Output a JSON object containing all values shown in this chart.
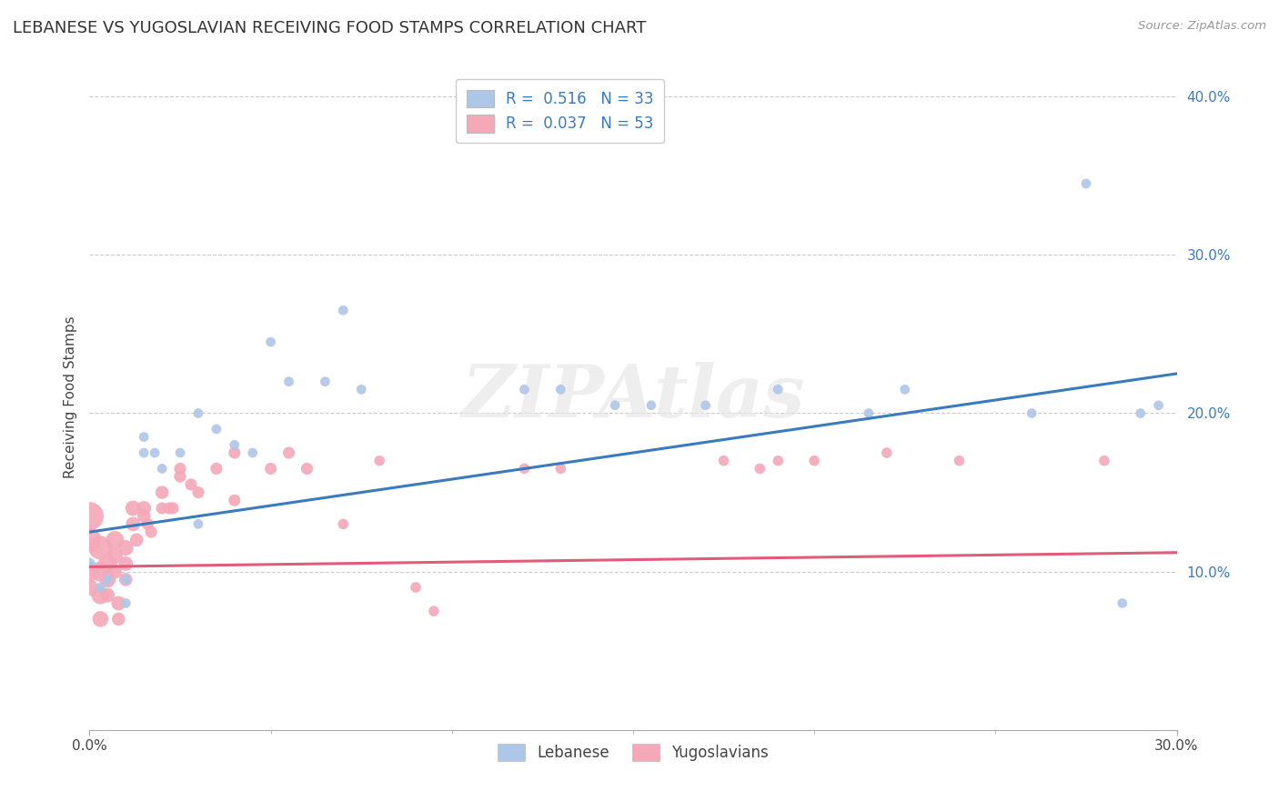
{
  "title": "LEBANESE VS YUGOSLAVIAN RECEIVING FOOD STAMPS CORRELATION CHART",
  "source_text": "Source: ZipAtlas.com",
  "ylabel": "Receiving Food Stamps",
  "xlim": [
    0.0,
    0.3
  ],
  "ylim": [
    0.0,
    0.42
  ],
  "xtick_labels_ends": [
    "0.0%",
    "30.0%"
  ],
  "xtick_vals_ends": [
    0.0,
    0.3
  ],
  "ytick_labels": [
    "10.0%",
    "20.0%",
    "30.0%",
    "40.0%"
  ],
  "ytick_vals": [
    0.1,
    0.2,
    0.3,
    0.4
  ],
  "background_color": "#ffffff",
  "plot_bg_color": "#ffffff",
  "grid_color": "#cccccc",
  "lebanese_color": "#aec6e8",
  "yugoslavian_color": "#f4a8b8",
  "lebanese_line_color": "#3a7abf",
  "yugoslavian_line_color": "#e05c78",
  "watermark_color": "#e8e8e8",
  "watermark_text": "ZIPAtlas",
  "lebanese_label": "Lebanese",
  "yugoslavian_label": "Yugoslavians",
  "lebanese_scatter": [
    [
      0.0,
      0.105
    ],
    [
      0.003,
      0.09
    ],
    [
      0.005,
      0.095
    ],
    [
      0.01,
      0.095
    ],
    [
      0.01,
      0.08
    ],
    [
      0.015,
      0.185
    ],
    [
      0.015,
      0.175
    ],
    [
      0.018,
      0.175
    ],
    [
      0.02,
      0.165
    ],
    [
      0.025,
      0.175
    ],
    [
      0.03,
      0.13
    ],
    [
      0.03,
      0.2
    ],
    [
      0.035,
      0.19
    ],
    [
      0.04,
      0.18
    ],
    [
      0.045,
      0.175
    ],
    [
      0.05,
      0.245
    ],
    [
      0.055,
      0.22
    ],
    [
      0.065,
      0.22
    ],
    [
      0.07,
      0.265
    ],
    [
      0.075,
      0.215
    ],
    [
      0.12,
      0.215
    ],
    [
      0.13,
      0.215
    ],
    [
      0.145,
      0.205
    ],
    [
      0.155,
      0.205
    ],
    [
      0.17,
      0.205
    ],
    [
      0.19,
      0.215
    ],
    [
      0.215,
      0.2
    ],
    [
      0.225,
      0.215
    ],
    [
      0.26,
      0.2
    ],
    [
      0.275,
      0.345
    ],
    [
      0.285,
      0.08
    ],
    [
      0.29,
      0.2
    ],
    [
      0.295,
      0.205
    ]
  ],
  "lebanese_sizes": [
    80,
    60,
    60,
    60,
    60,
    60,
    60,
    60,
    60,
    60,
    60,
    60,
    60,
    60,
    60,
    60,
    60,
    60,
    60,
    60,
    60,
    60,
    60,
    60,
    60,
    60,
    60,
    60,
    60,
    60,
    60,
    60,
    60
  ],
  "yugoslavian_scatter": [
    [
      0.0,
      0.135
    ],
    [
      0.0,
      0.12
    ],
    [
      0.0,
      0.1
    ],
    [
      0.0,
      0.09
    ],
    [
      0.003,
      0.115
    ],
    [
      0.003,
      0.1
    ],
    [
      0.003,
      0.085
    ],
    [
      0.003,
      0.07
    ],
    [
      0.005,
      0.105
    ],
    [
      0.005,
      0.095
    ],
    [
      0.005,
      0.085
    ],
    [
      0.007,
      0.12
    ],
    [
      0.007,
      0.11
    ],
    [
      0.007,
      0.1
    ],
    [
      0.008,
      0.08
    ],
    [
      0.008,
      0.07
    ],
    [
      0.01,
      0.115
    ],
    [
      0.01,
      0.105
    ],
    [
      0.01,
      0.095
    ],
    [
      0.012,
      0.14
    ],
    [
      0.012,
      0.13
    ],
    [
      0.013,
      0.12
    ],
    [
      0.015,
      0.14
    ],
    [
      0.015,
      0.135
    ],
    [
      0.016,
      0.13
    ],
    [
      0.017,
      0.125
    ],
    [
      0.02,
      0.15
    ],
    [
      0.02,
      0.14
    ],
    [
      0.022,
      0.14
    ],
    [
      0.023,
      0.14
    ],
    [
      0.025,
      0.165
    ],
    [
      0.025,
      0.16
    ],
    [
      0.028,
      0.155
    ],
    [
      0.03,
      0.15
    ],
    [
      0.035,
      0.165
    ],
    [
      0.04,
      0.175
    ],
    [
      0.04,
      0.145
    ],
    [
      0.05,
      0.165
    ],
    [
      0.055,
      0.175
    ],
    [
      0.06,
      0.165
    ],
    [
      0.07,
      0.13
    ],
    [
      0.08,
      0.17
    ],
    [
      0.09,
      0.09
    ],
    [
      0.095,
      0.075
    ],
    [
      0.12,
      0.165
    ],
    [
      0.13,
      0.165
    ],
    [
      0.175,
      0.17
    ],
    [
      0.185,
      0.165
    ],
    [
      0.19,
      0.17
    ],
    [
      0.2,
      0.17
    ],
    [
      0.22,
      0.175
    ],
    [
      0.24,
      0.17
    ],
    [
      0.28,
      0.17
    ]
  ],
  "yugoslavian_sizes": [
    500,
    350,
    250,
    180,
    350,
    250,
    200,
    160,
    220,
    160,
    130,
    200,
    160,
    130,
    130,
    110,
    150,
    130,
    110,
    150,
    130,
    110,
    130,
    110,
    90,
    90,
    110,
    90,
    90,
    90,
    90,
    90,
    90,
    90,
    90,
    90,
    90,
    90,
    90,
    90,
    70,
    70,
    70,
    70,
    70,
    70,
    70,
    70,
    70,
    70,
    70,
    70,
    70
  ],
  "leb_trendline": [
    [
      0.0,
      0.125
    ],
    [
      0.3,
      0.225
    ]
  ],
  "yug_trendline": [
    [
      0.0,
      0.103
    ],
    [
      0.3,
      0.112
    ]
  ]
}
